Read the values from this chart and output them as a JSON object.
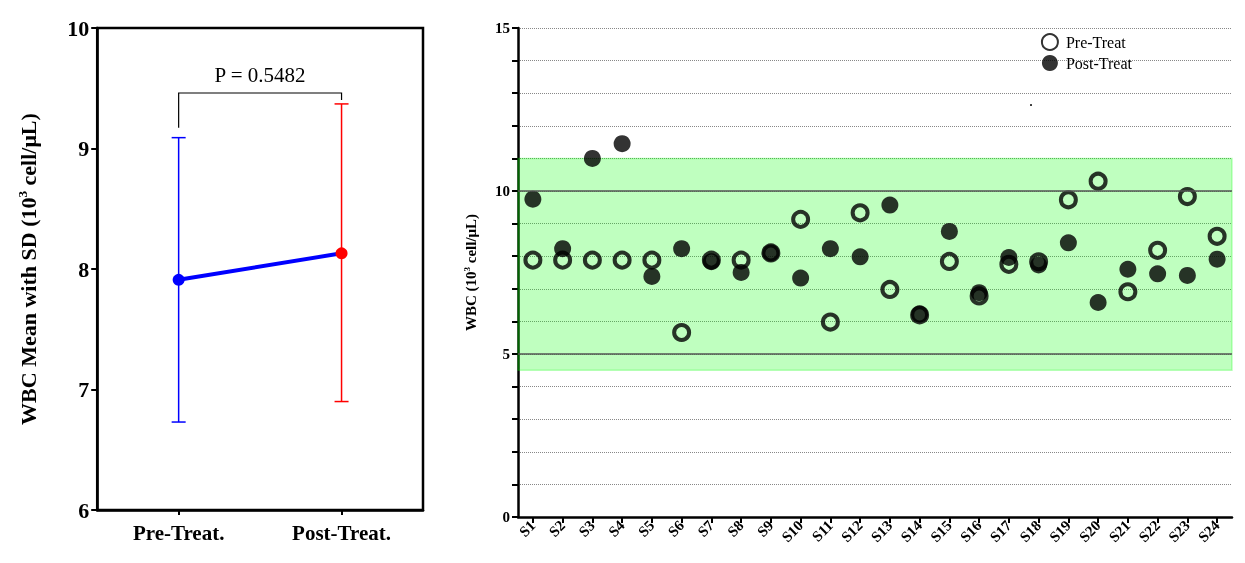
{
  "chart_data": [
    {
      "type": "line",
      "ylabel": "WBC Mean with SD (10$^{3}$ cell/μL)",
      "categories": [
        "Pre-Treat.",
        "Post-Treat."
      ],
      "series": [
        {
          "color": "#0000ff",
          "colors": [
            "#0000ff",
            "#ff0000"
          ],
          "values": [
            7.91,
            8.13
          ],
          "errors": [
            [
              6.73,
              9.09
            ],
            [
              6.9,
              9.37
            ]
          ]
        }
      ],
      "ylim": [
        6,
        10
      ],
      "yticks": [
        6,
        7,
        8,
        9,
        10
      ],
      "grid": false,
      "marker": "circle",
      "annotations": [
        "P = 0.5482"
      ]
    },
    {
      "type": "scatter",
      "ylabel": "WBC (10$^{3}$ cell/μL)",
      "categories": [
        "S1",
        "S2",
        "S3",
        "S4",
        "S5",
        "S6",
        "S7",
        "S8",
        "S9",
        "S10",
        "S11",
        "S12",
        "S13",
        "S14",
        "S15",
        "S16",
        "S17",
        "S18",
        "S19",
        "S20",
        "S21",
        "S22",
        "S23",
        "S24"
      ],
      "series": [
        {
          "name": "Pre-Treat",
          "color": "#000000",
          "values": [
            7.88,
            7.88,
            7.88,
            7.88,
            7.88,
            5.66,
            7.88,
            7.88,
            8.1,
            9.13,
            5.98,
            9.33,
            6.98,
            6.2,
            7.84,
            6.78,
            7.75,
            7.83,
            9.73,
            10.3,
            6.91,
            8.18,
            9.83,
            8.61
          ]
        },
        {
          "name": "Post-Treat",
          "color": "#000000",
          "values": [
            9.75,
            8.23,
            11.0,
            11.45,
            7.38,
            8.23,
            7.83,
            7.5,
            8.1,
            7.33,
            8.23,
            7.98,
            9.57,
            6.22,
            8.76,
            6.88,
            7.96,
            7.73,
            8.41,
            6.58,
            7.6,
            7.46,
            7.41,
            7.91
          ]
        }
      ],
      "ylim": [
        0,
        15
      ],
      "yticks": [
        0,
        {
          "value": 1,
          "label": null
        },
        {
          "value": 2,
          "label": null
        },
        {
          "value": 3,
          "label": null
        },
        {
          "value": 4,
          "label": null
        },
        5,
        {
          "value": 6,
          "label": null
        },
        {
          "value": 7,
          "label": null
        },
        {
          "value": 8,
          "label": null
        },
        {
          "value": 9,
          "label": null
        },
        10,
        {
          "value": 11,
          "label": null
        },
        {
          "value": 12,
          "label": null
        },
        {
          "value": 13,
          "label": null
        },
        {
          "value": 14,
          "label": null
        },
        15
      ],
      "grid": "y",
      "marker": "circle",
      "legend": "top right",
      "bands": [
        {
          "axis": "y",
          "from": 4.5,
          "to": 11,
          "color": "#00ff00"
        }
      ],
      "annotations": [
        "."
      ]
    }
  ]
}
